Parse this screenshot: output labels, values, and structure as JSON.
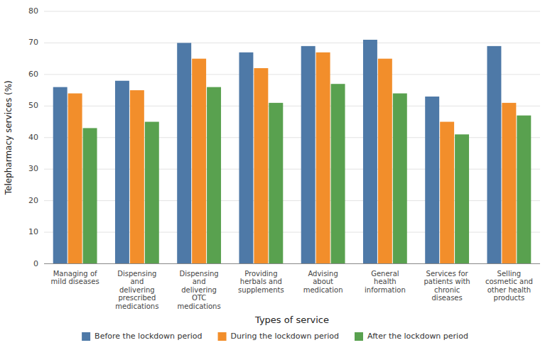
{
  "chart_data": {
    "type": "bar",
    "categories": [
      "Managing of\nmild diseases",
      "Dispensing\nand\ndelivering\nprescribed\nmedications",
      "Dispensing\nand\ndelivering\nOTC\nmedications",
      "Providing\nherbals and\nsupplements",
      "Advising\nabout\nmedication",
      "General\nhealth\ninformation",
      "Services for\npatients with\nchronic\ndiseases",
      "Selling\ncosmetic and\nother health\nproducts"
    ],
    "series": [
      {
        "name": "Before the lockdown period",
        "values": [
          56,
          58,
          70,
          67,
          69,
          71,
          53,
          69
        ]
      },
      {
        "name": "During the lockdown period",
        "values": [
          54,
          55,
          65,
          62,
          67,
          65,
          45,
          51
        ]
      },
      {
        "name": "After the lockdown period",
        "values": [
          43,
          45,
          56,
          51,
          57,
          54,
          41,
          47
        ]
      }
    ],
    "xlabel": "Types of service",
    "ylabel": "Telepharmacy services (%)",
    "ylim": [
      0,
      80
    ],
    "yticks": [
      0,
      10,
      20,
      30,
      40,
      50,
      60,
      70,
      80
    ],
    "grid": true,
    "legend": "bottom"
  }
}
